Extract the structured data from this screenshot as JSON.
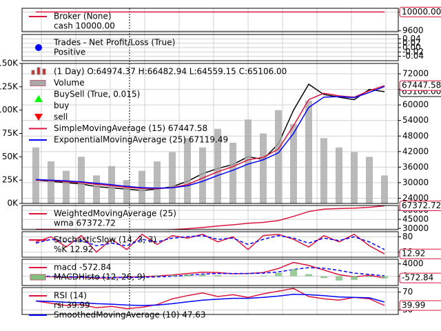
{
  "chart_data": [
    {
      "type": "line",
      "ylim": [
        9580,
        10080
      ],
      "yticks": [
        10000,
        9600
      ],
      "series": [
        {
          "name": "Broker (None)",
          "sub": "cash 10000.00",
          "color": "#dc143c",
          "symbol": "line",
          "style": "line",
          "value_label": "10000.00",
          "values": [
            10000,
            10000,
            10000,
            10000,
            10000,
            10000,
            10000,
            10000,
            10000,
            10000,
            10000,
            10000,
            10000,
            10000,
            10000,
            10000,
            10000,
            10000,
            10000,
            10000,
            10000,
            10000,
            10000,
            10000
          ]
        }
      ]
    },
    {
      "type": "line",
      "ylim": [
        -0.06,
        0.06
      ],
      "yticks": [
        0.04,
        0.02,
        {
          "value": 0,
          "label": "0.00"
        },
        -0.02,
        -0.04
      ],
      "series": [
        {
          "name": "Trades - Net Profit/Loss (True)",
          "sub": "Positive",
          "color": "#0000ff",
          "symbol": "dot"
        }
      ]
    },
    {
      "type": "line",
      "ylim": [
        22000,
        76000
      ],
      "yticks": [
        72000,
        66000,
        60000,
        54000,
        48000,
        42000,
        36000,
        30000,
        24000
      ],
      "y2lim": [
        0,
        150000
      ],
      "y2ticks": [
        {
          "value": 150000,
          "label": "150K"
        },
        {
          "value": 125000,
          "label": "125K"
        },
        {
          "value": 100000,
          "label": "100K"
        },
        {
          "value": 75000,
          "label": "75K"
        },
        {
          "value": 50000,
          "label": "50K"
        },
        {
          "value": 25000,
          "label": "25K"
        },
        {
          "value": 0,
          "label": "0K"
        }
      ],
      "series": [
        {
          "name": "(1 Day) O:64974.37 H:66482.94 L:64559.15 C:65106.00",
          "color": "#000000",
          "symbol": "candle",
          "style": "line",
          "value_label": "65106.00",
          "values": [
            31000,
            30500,
            30000,
            29500,
            28500,
            28000,
            27500,
            27000,
            27500,
            28500,
            30500,
            33500,
            35500,
            37000,
            40000,
            39000,
            45000,
            58000,
            68000,
            64000,
            63000,
            62000,
            66000,
            65106
          ]
        },
        {
          "name": "Volume",
          "color": "#a9a9a9",
          "symbol": "bar",
          "style": "bar",
          "axis": "y2",
          "values": [
            60000,
            45000,
            35000,
            50000,
            30000,
            40000,
            25000,
            35000,
            45000,
            55000,
            70000,
            60000,
            80000,
            65000,
            90000,
            75000,
            100000,
            85000,
            110000,
            70000,
            60000,
            55000,
            50000,
            30000
          ]
        },
        {
          "name": "BuySell (True, 0.015)",
          "sub": "buy",
          "color": "#00ff00",
          "symbol": "triangle-up"
        },
        {
          "name": "sell",
          "color": "#ff0000",
          "symbol": "triangle-down"
        },
        {
          "name": "SimpleMovingAverage (15) 67447.58",
          "color": "#dc143c",
          "symbol": "line",
          "style": "line",
          "value_label": "67447.58",
          "values": [
            31000,
            30800,
            30400,
            30000,
            29400,
            28800,
            28200,
            27800,
            27700,
            28100,
            29300,
            31800,
            34200,
            36200,
            38800,
            39800,
            43000,
            52000,
            62000,
            64500,
            63500,
            63000,
            65500,
            67447.58
          ]
        },
        {
          "name": "ExponentialMovingAverage (25) 67119.49",
          "color": "#0000ff",
          "symbol": "line",
          "style": "line",
          "values": [
            31200,
            31000,
            30700,
            30300,
            29800,
            29200,
            28600,
            28100,
            27900,
            28000,
            28800,
            30500,
            32800,
            34800,
            37200,
            38800,
            41500,
            49000,
            59000,
            63000,
            63200,
            62800,
            64800,
            67119.49
          ]
        }
      ]
    },
    {
      "type": "line",
      "ylim": [
        28000,
        68000
      ],
      "yticks": [
        60000,
        45000,
        30000
      ],
      "series": [
        {
          "name": "WeightedMovingAverage (25)",
          "sub": "wma 67372.72",
          "color": "#dc143c",
          "symbol": "line",
          "style": "line",
          "value_label": "67372.72",
          "values": [
            28500,
            28300,
            28000,
            27700,
            27400,
            27100,
            27000,
            27000,
            27300,
            28000,
            29500,
            31500,
            34000,
            36000,
            38500,
            40000,
            43000,
            50000,
            58000,
            62000,
            63000,
            63500,
            65000,
            67372.72
          ]
        }
      ]
    },
    {
      "type": "line",
      "ylim": [
        0,
        100
      ],
      "yticks": [
        80,
        20
      ],
      "series": [
        {
          "name": "StochasticSlow (14, 3, 3)",
          "sub": "%K 12.92",
          "color": "#dc143c",
          "symbol": "line",
          "style": "line",
          "value_label": "12.92",
          "values": [
            60,
            80,
            40,
            85,
            20,
            70,
            30,
            90,
            50,
            85,
            75,
            90,
            60,
            80,
            30,
            85,
            90,
            70,
            40,
            85,
            60,
            90,
            45,
            12.92
          ]
        },
        {
          "color": "#0000ff",
          "style": "dashed",
          "values": [
            55,
            70,
            60,
            65,
            45,
            55,
            45,
            70,
            60,
            75,
            80,
            85,
            70,
            75,
            50,
            70,
            85,
            75,
            55,
            75,
            65,
            80,
            60,
            30
          ]
        }
      ]
    },
    {
      "type": "line",
      "ylim": [
        -3000,
        5500
      ],
      "yticks": [
        4000,
        0
      ],
      "series": [
        {
          "name": "macd -572.84",
          "color": "#dc143c",
          "symbol": "line",
          "style": "line",
          "value_label": "-572.84",
          "values": [
            0,
            -200,
            -400,
            -300,
            -600,
            -500,
            -300,
            -200,
            100,
            400,
            900,
            1300,
            1200,
            800,
            900,
            1200,
            2500,
            4500,
            3500,
            2000,
            500,
            -200,
            300,
            -572.84
          ]
        },
        {
          "color": "#0000ff",
          "style": "dashed",
          "values": [
            100,
            0,
            -150,
            -250,
            -350,
            -450,
            -400,
            -350,
            -200,
            0,
            300,
            700,
            900,
            900,
            900,
            1000,
            1400,
            2200,
            2800,
            2600,
            1900,
            1000,
            600,
            100
          ]
        },
        {
          "name": "MACDHisto (12, 26, 9)",
          "color": "#7fbf7f",
          "symbol": "bar",
          "style": "bar",
          "values": [
            -100,
            -200,
            -250,
            -50,
            -250,
            -50,
            100,
            150,
            300,
            400,
            600,
            600,
            300,
            -100,
            0,
            200,
            1100,
            2300,
            700,
            -600,
            -1400,
            -1200,
            -300,
            -670
          ]
        }
      ]
    },
    {
      "type": "line",
      "ylim": [
        20,
        80
      ],
      "yticks": [
        70,
        30
      ],
      "series": [
        {
          "name": "RSI (14)",
          "sub": "rsi 39.99",
          "color": "#dc143c",
          "symbol": "line",
          "style": "line",
          "value_label": "39.99",
          "values": [
            50,
            45,
            40,
            42,
            35,
            38,
            33,
            36,
            42,
            55,
            62,
            68,
            60,
            64,
            58,
            66,
            72,
            78,
            60,
            55,
            52,
            58,
            55,
            39.99
          ]
        },
        {
          "name": "SmoothedMovingAverage (10) 47.63",
          "color": "#0000ff",
          "symbol": "line",
          "style": "line",
          "values": [
            50,
            49,
            47,
            46,
            44,
            43,
            41,
            40,
            41,
            44,
            48,
            52,
            54,
            56,
            56,
            58,
            61,
            65,
            64,
            62,
            59,
            58,
            57,
            47.63
          ]
        }
      ]
    }
  ]
}
